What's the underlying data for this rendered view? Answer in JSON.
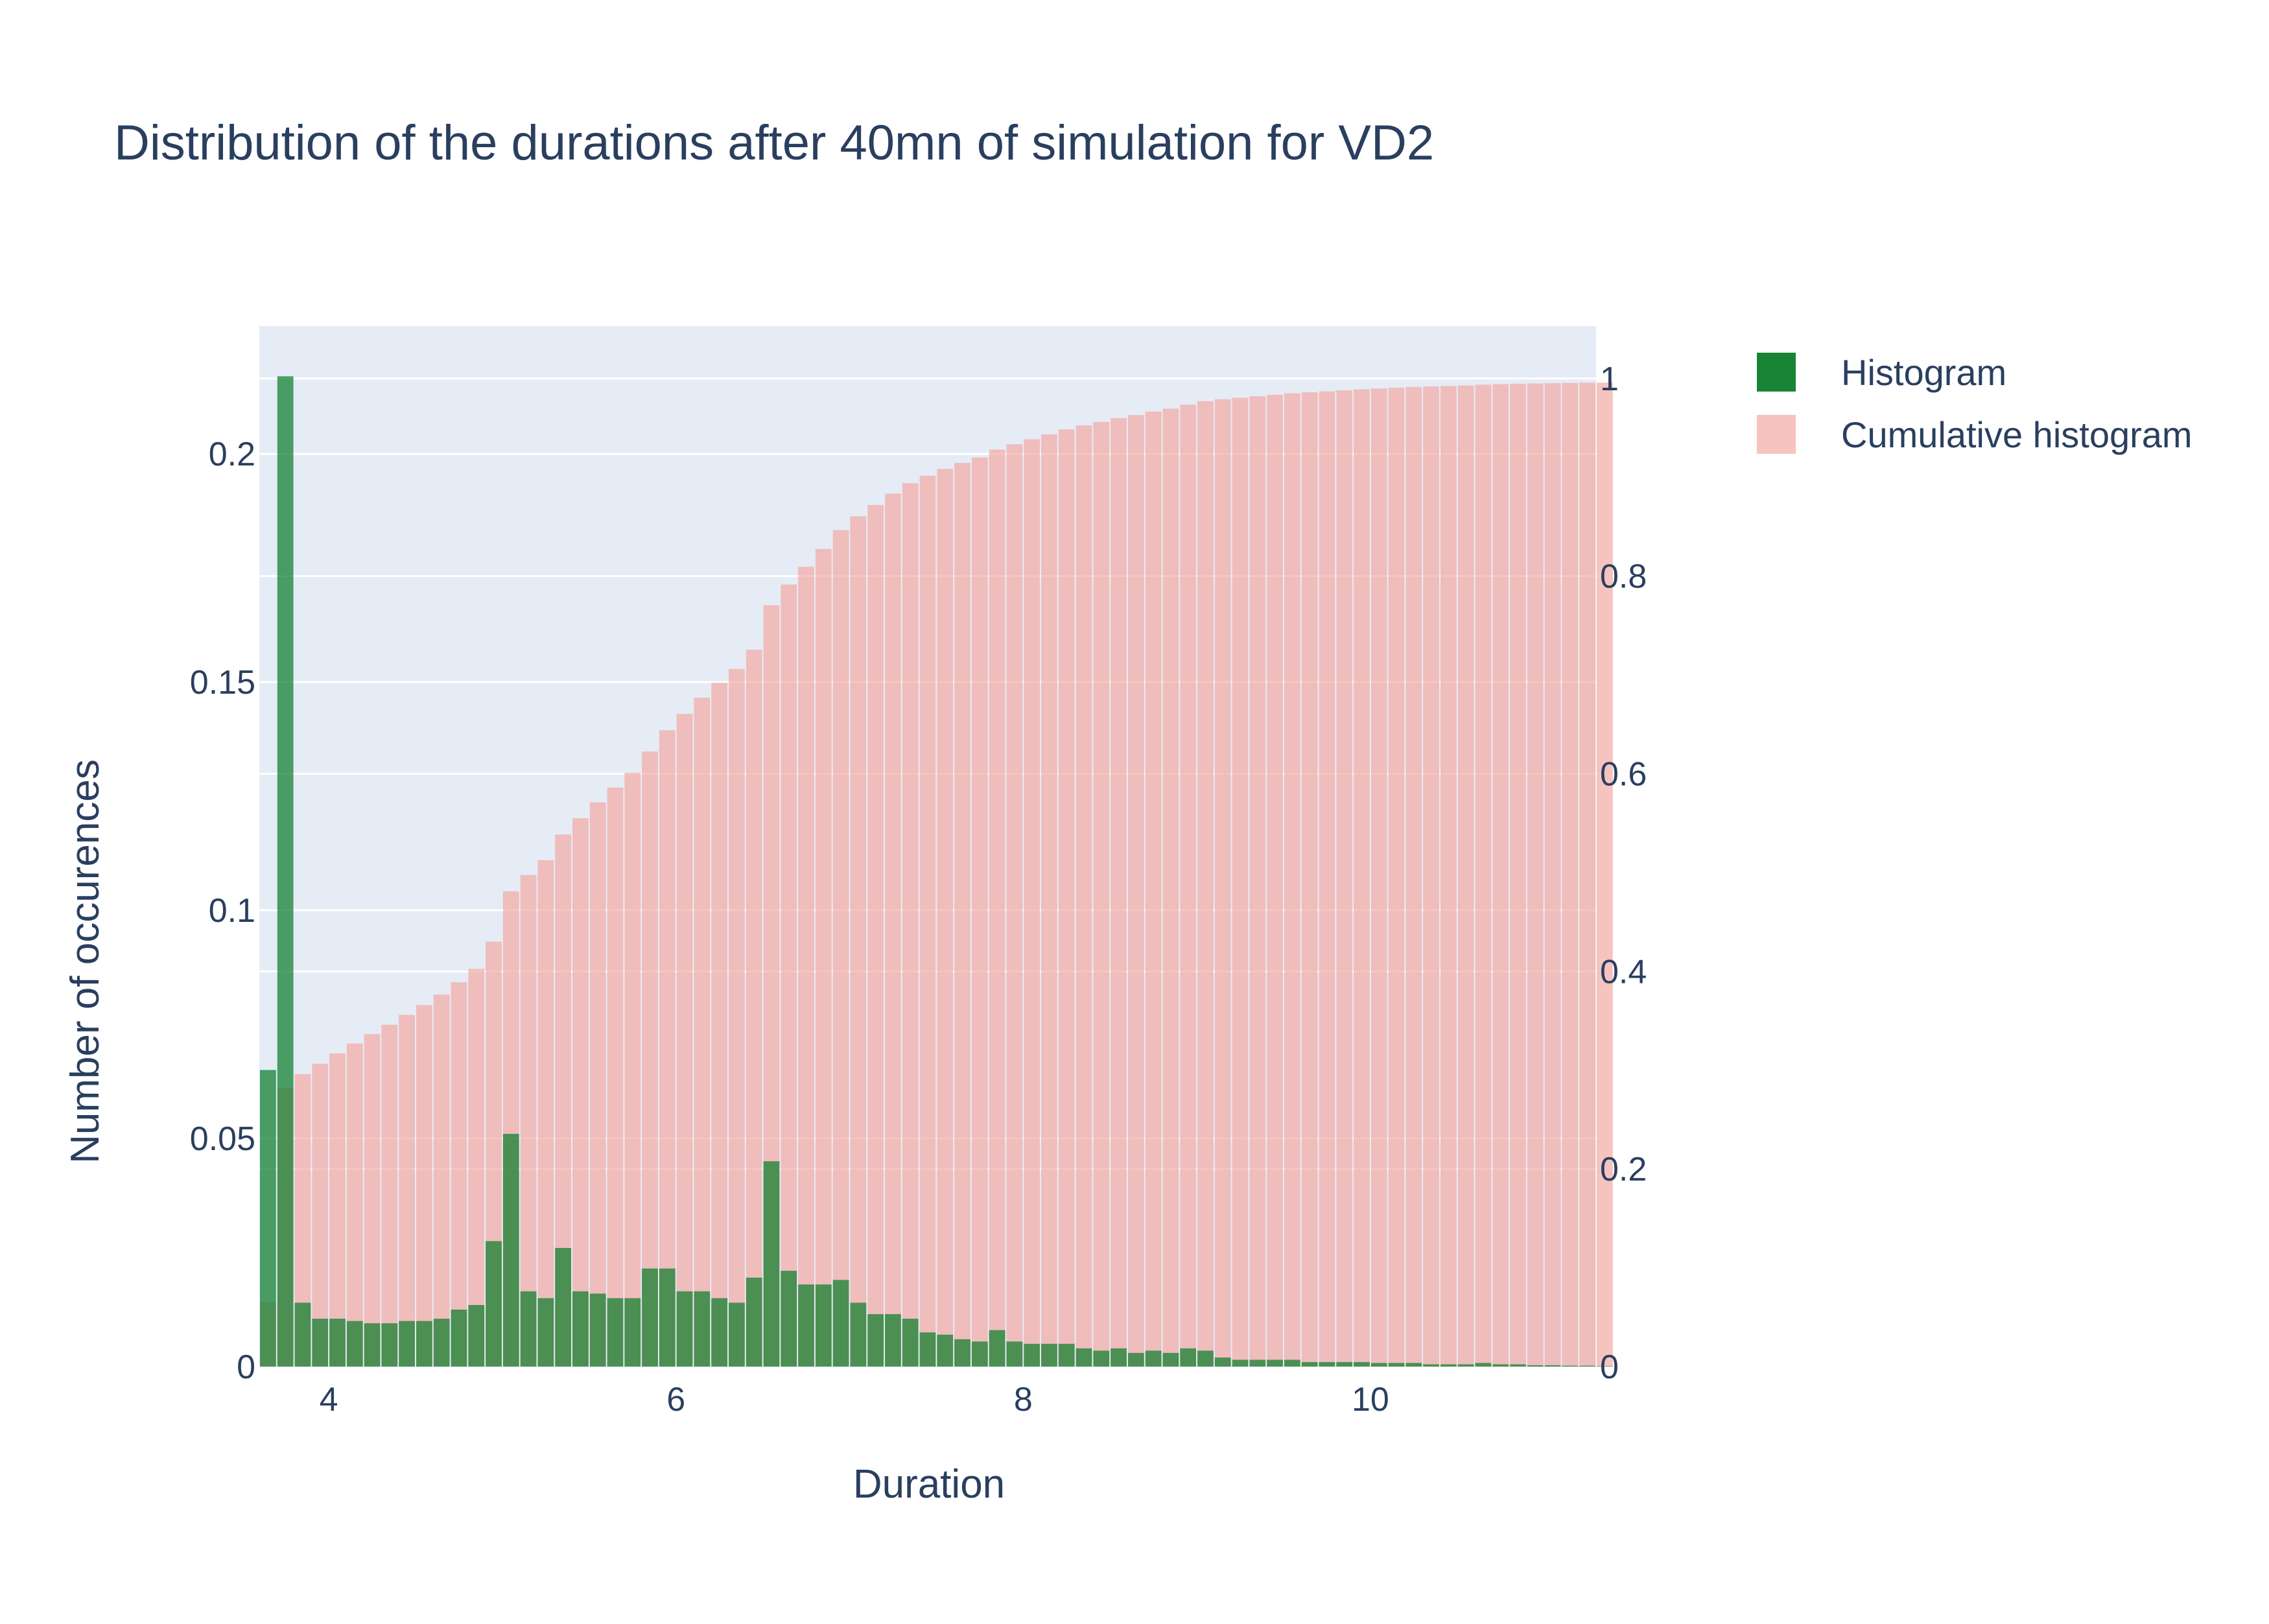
{
  "chart_data": {
    "type": "bar",
    "title": "Distribution of the durations after 40mn of simulation for VD2",
    "xlabel": "Duration",
    "ylabel": "Number of occurences",
    "xlim": [
      3.6,
      11.3
    ],
    "ylim": [
      0,
      0.228
    ],
    "y2lim": [
      0,
      1.053
    ],
    "x_ticks": [
      4,
      6,
      8,
      10
    ],
    "x_tick_labels": [
      "4",
      "6",
      "8",
      "10"
    ],
    "y_ticks": [
      0,
      0.05,
      0.1,
      0.15,
      0.2
    ],
    "y_tick_labels": [
      "0",
      "0.05",
      "0.1",
      "0.15",
      "0.2"
    ],
    "y2_ticks": [
      0,
      0.2,
      0.4,
      0.6,
      0.8,
      1
    ],
    "y2_tick_labels": [
      "0",
      "0.2",
      "0.4",
      "0.6",
      "0.8",
      "1"
    ],
    "grid": true,
    "legend_position": "top-right",
    "bin_start": 3.6,
    "bin_width": 0.1,
    "colors": {
      "histogram": "#0b7d2b",
      "cumulative": "#f4aaa4",
      "plot_bg": "#e5ecf6",
      "grid": "#ffffff",
      "text": "#2a3f5f"
    },
    "series": [
      {
        "name": "Histogram",
        "axis": "left",
        "values": [
          0.065,
          0.217,
          0.014,
          0.0105,
          0.0105,
          0.01,
          0.0095,
          0.0095,
          0.01,
          0.01,
          0.0105,
          0.0125,
          0.0135,
          0.0275,
          0.051,
          0.0165,
          0.015,
          0.026,
          0.0165,
          0.016,
          0.015,
          0.015,
          0.0215,
          0.0215,
          0.0165,
          0.0165,
          0.015,
          0.014,
          0.0195,
          0.045,
          0.021,
          0.018,
          0.018,
          0.019,
          0.014,
          0.0115,
          0.0115,
          0.0105,
          0.0075,
          0.007,
          0.006,
          0.0055,
          0.008,
          0.0055,
          0.005,
          0.005,
          0.005,
          0.004,
          0.0035,
          0.004,
          0.003,
          0.0035,
          0.003,
          0.004,
          0.0035,
          0.002,
          0.0015,
          0.0015,
          0.0015,
          0.0015,
          0.001,
          0.001,
          0.001,
          0.001,
          0.0008,
          0.0008,
          0.0008,
          0.0005,
          0.0005,
          0.0005,
          0.0008,
          0.0005,
          0.0005,
          0.0003,
          0.0003,
          0.0002,
          0.0002,
          0.0001
        ]
      },
      {
        "name": "Cumulative histogram",
        "axis": "right",
        "values": [
          0.065,
          0.282,
          0.296,
          0.3065,
          0.317,
          0.327,
          0.3365,
          0.346,
          0.356,
          0.366,
          0.3765,
          0.389,
          0.4025,
          0.43,
          0.481,
          0.4975,
          0.5125,
          0.5385,
          0.555,
          0.571,
          0.586,
          0.601,
          0.6225,
          0.644,
          0.6605,
          0.677,
          0.692,
          0.706,
          0.7255,
          0.7705,
          0.7915,
          0.8095,
          0.8275,
          0.8465,
          0.8605,
          0.872,
          0.8835,
          0.894,
          0.9015,
          0.9085,
          0.9145,
          0.92,
          0.928,
          0.9335,
          0.9385,
          0.9435,
          0.9485,
          0.9525,
          0.956,
          0.96,
          0.963,
          0.9665,
          0.9695,
          0.9735,
          0.977,
          0.979,
          0.9805,
          0.982,
          0.9835,
          0.985,
          0.986,
          0.987,
          0.988,
          0.989,
          0.9898,
          0.9906,
          0.9914,
          0.9919,
          0.9924,
          0.9929,
          0.9937,
          0.9942,
          0.9947,
          0.995,
          0.9953,
          0.9955,
          0.9957,
          0.9958
        ]
      }
    ]
  }
}
